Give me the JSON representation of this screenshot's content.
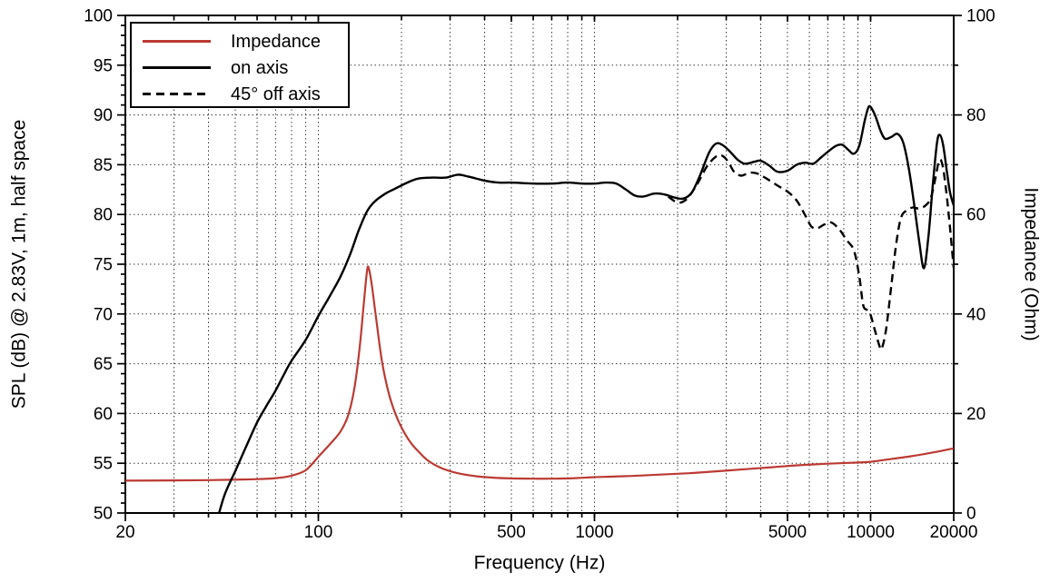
{
  "chart_data": {
    "type": "line",
    "title": "",
    "xlabel": "Frequency (Hz)",
    "ylabel_left": "SPL (dB) @ 2.83V, 1m, half space",
    "ylabel_right": "Impedance (Ohm)",
    "x_axis": {
      "scale": "log",
      "min": 20,
      "max": 20000,
      "labeled_ticks": [
        20,
        100,
        500,
        1000,
        5000,
        10000,
        20000
      ],
      "tick_labels": [
        "20",
        "100",
        "500",
        "1000",
        "5000",
        "10000",
        "20000"
      ]
    },
    "y_left_axis": {
      "min": 50,
      "max": 100,
      "major_step": 5,
      "minor_step": 1,
      "tick_labels": [
        "50",
        "55",
        "60",
        "65",
        "70",
        "75",
        "80",
        "85",
        "90",
        "95",
        "100"
      ]
    },
    "y_right_axis": {
      "min": 0,
      "max": 100,
      "major_step": 20,
      "minor_step": 10,
      "tick_labels": [
        "0",
        "20",
        "40",
        "60",
        "80",
        "100"
      ]
    },
    "grid": {
      "on": true,
      "horizontal_lines_dB": [
        55,
        60,
        65,
        70,
        75,
        80,
        85,
        90,
        95
      ],
      "style": "dotted",
      "color": "#3a3a3a"
    },
    "legend": {
      "position": "top-left",
      "entries": [
        {
          "label": "Impedance",
          "style": "solid",
          "color": "#bb3a33"
        },
        {
          "label": "on axis",
          "style": "solid",
          "color": "#000000"
        },
        {
          "label": "45° off axis",
          "style": "dashed",
          "color": "#000000"
        }
      ]
    },
    "series": [
      {
        "name": "Impedance",
        "axis": "right",
        "unit": "Ohm",
        "style": "solid",
        "color": "#bb3a33",
        "width": 2.2,
        "points": [
          [
            20,
            6.5
          ],
          [
            30,
            6.55
          ],
          [
            40,
            6.6
          ],
          [
            50,
            6.7
          ],
          [
            60,
            6.8
          ],
          [
            70,
            7.0
          ],
          [
            80,
            7.5
          ],
          [
            90,
            8.6
          ],
          [
            100,
            11.3
          ],
          [
            110,
            13.8
          ],
          [
            120,
            16.3
          ],
          [
            128,
            19.5
          ],
          [
            135,
            25
          ],
          [
            141,
            33
          ],
          [
            146,
            42
          ],
          [
            150,
            48.5
          ],
          [
            152,
            49.3
          ],
          [
            156,
            46
          ],
          [
            162,
            39
          ],
          [
            170,
            30.5
          ],
          [
            180,
            24
          ],
          [
            190,
            20
          ],
          [
            200,
            17.2
          ],
          [
            215,
            14.3
          ],
          [
            230,
            12.4
          ],
          [
            250,
            10.5
          ],
          [
            280,
            9.0
          ],
          [
            320,
            8.0
          ],
          [
            370,
            7.4
          ],
          [
            430,
            7.1
          ],
          [
            500,
            6.95
          ],
          [
            600,
            6.9
          ],
          [
            700,
            6.9
          ],
          [
            850,
            7.0
          ],
          [
            1000,
            7.2
          ],
          [
            1300,
            7.4
          ],
          [
            1700,
            7.7
          ],
          [
            2200,
            8.0
          ],
          [
            2800,
            8.4
          ],
          [
            3500,
            8.8
          ],
          [
            4400,
            9.2
          ],
          [
            5500,
            9.6
          ],
          [
            7000,
            9.9
          ],
          [
            8500,
            10.1
          ],
          [
            10000,
            10.3
          ],
          [
            12000,
            10.9
          ],
          [
            14000,
            11.4
          ],
          [
            17000,
            12.2
          ],
          [
            20000,
            13.0
          ]
        ]
      },
      {
        "name": "on axis",
        "axis": "left",
        "unit": "dB",
        "style": "solid",
        "color": "#000000",
        "width": 2.4,
        "points": [
          [
            43.7,
            50
          ],
          [
            46,
            52
          ],
          [
            50,
            54.2
          ],
          [
            55,
            56.8
          ],
          [
            60,
            59.1
          ],
          [
            65,
            60.8
          ],
          [
            70,
            62.3
          ],
          [
            75,
            63.9
          ],
          [
            80,
            65.3
          ],
          [
            90,
            67.4
          ],
          [
            100,
            69.8
          ],
          [
            110,
            71.8
          ],
          [
            120,
            73.7
          ],
          [
            130,
            75.9
          ],
          [
            140,
            78.4
          ],
          [
            150,
            80.3
          ],
          [
            160,
            81.3
          ],
          [
            175,
            82.1
          ],
          [
            190,
            82.6
          ],
          [
            210,
            83.2
          ],
          [
            230,
            83.6
          ],
          [
            260,
            83.7
          ],
          [
            290,
            83.7
          ],
          [
            320,
            84.0
          ],
          [
            350,
            83.8
          ],
          [
            400,
            83.4
          ],
          [
            450,
            83.2
          ],
          [
            500,
            83.2
          ],
          [
            600,
            83.1
          ],
          [
            700,
            83.1
          ],
          [
            800,
            83.2
          ],
          [
            900,
            83.1
          ],
          [
            1000,
            83.1
          ],
          [
            1100,
            83.2
          ],
          [
            1200,
            83.1
          ],
          [
            1300,
            82.5
          ],
          [
            1400,
            81.9
          ],
          [
            1500,
            81.8
          ],
          [
            1650,
            82.1
          ],
          [
            1800,
            82.0
          ],
          [
            1950,
            81.7
          ],
          [
            2100,
            81.6
          ],
          [
            2250,
            82.2
          ],
          [
            2400,
            83.8
          ],
          [
            2600,
            86.2
          ],
          [
            2750,
            87.1
          ],
          [
            2900,
            87.0
          ],
          [
            3100,
            86.3
          ],
          [
            3300,
            85.5
          ],
          [
            3500,
            85.1
          ],
          [
            3800,
            85.3
          ],
          [
            4000,
            85.4
          ],
          [
            4300,
            84.9
          ],
          [
            4600,
            84.3
          ],
          [
            5000,
            84.4
          ],
          [
            5400,
            85.0
          ],
          [
            5800,
            85.2
          ],
          [
            6200,
            85.1
          ],
          [
            6600,
            85.7
          ],
          [
            7000,
            86.3
          ],
          [
            7500,
            86.9
          ],
          [
            7900,
            87.0
          ],
          [
            8300,
            86.5
          ],
          [
            8700,
            86.1
          ],
          [
            9100,
            86.9
          ],
          [
            9500,
            89.3
          ],
          [
            9800,
            90.7
          ],
          [
            10000,
            90.8
          ],
          [
            10400,
            89.9
          ],
          [
            10900,
            88.3
          ],
          [
            11300,
            87.6
          ],
          [
            11900,
            87.8
          ],
          [
            12500,
            88.1
          ],
          [
            13100,
            87.3
          ],
          [
            13700,
            84.9
          ],
          [
            14300,
            81.5
          ],
          [
            15000,
            77.3
          ],
          [
            15600,
            74.6
          ],
          [
            16200,
            77.8
          ],
          [
            16800,
            83.0
          ],
          [
            17400,
            87.2
          ],
          [
            17800,
            88.0
          ],
          [
            18300,
            87.0
          ],
          [
            18900,
            84.3
          ],
          [
            19400,
            82.2
          ],
          [
            20000,
            80.9
          ]
        ]
      },
      {
        "name": "45° off axis",
        "axis": "left",
        "unit": "dB",
        "style": "dashed",
        "color": "#000000",
        "width": 2.4,
        "points": [
          [
            1850,
            81.8
          ],
          [
            2000,
            81.2
          ],
          [
            2150,
            81.5
          ],
          [
            2350,
            83.0
          ],
          [
            2550,
            84.8
          ],
          [
            2750,
            85.8
          ],
          [
            2900,
            85.9
          ],
          [
            3050,
            85.3
          ],
          [
            3200,
            84.3
          ],
          [
            3400,
            83.9
          ],
          [
            3650,
            84.2
          ],
          [
            3900,
            84.1
          ],
          [
            4200,
            83.6
          ],
          [
            4600,
            82.9
          ],
          [
            5000,
            82.3
          ],
          [
            5400,
            81.4
          ],
          [
            5800,
            79.9
          ],
          [
            6100,
            78.8
          ],
          [
            6400,
            78.6
          ],
          [
            6800,
            79.0
          ],
          [
            7200,
            79.2
          ],
          [
            7700,
            78.5
          ],
          [
            8200,
            77.4
          ],
          [
            8700,
            76.4
          ],
          [
            9100,
            73.8
          ],
          [
            9400,
            70.9
          ],
          [
            9700,
            70.4
          ],
          [
            10000,
            69.9
          ],
          [
            10400,
            68.2
          ],
          [
            10800,
            66.7
          ],
          [
            11000,
            66.6
          ],
          [
            11400,
            68.6
          ],
          [
            11900,
            73.0
          ],
          [
            12400,
            77.2
          ],
          [
            12900,
            79.7
          ],
          [
            13500,
            80.4
          ],
          [
            14200,
            80.7
          ],
          [
            15000,
            80.6
          ],
          [
            15800,
            80.9
          ],
          [
            16500,
            81.6
          ],
          [
            17100,
            83.4
          ],
          [
            17700,
            85.4
          ],
          [
            18200,
            85.0
          ],
          [
            18800,
            82.3
          ],
          [
            19400,
            78.6
          ],
          [
            20000,
            74.6
          ]
        ]
      }
    ]
  }
}
